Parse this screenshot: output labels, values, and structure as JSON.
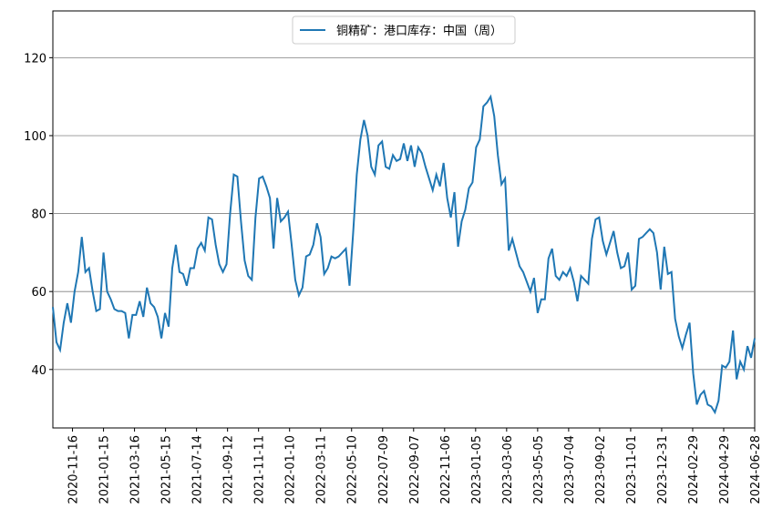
{
  "chart_data": {
    "type": "line",
    "x": [
      "2020-10-09",
      "2020-10-16",
      "2020-10-23",
      "2020-10-30",
      "2020-11-06",
      "2020-11-13",
      "2020-11-20",
      "2020-11-27",
      "2020-12-04",
      "2020-12-11",
      "2020-12-18",
      "2020-12-25",
      "2021-01-01",
      "2021-01-08",
      "2021-01-15",
      "2021-01-22",
      "2021-01-29",
      "2021-02-05",
      "2021-02-12",
      "2021-02-19",
      "2021-02-26",
      "2021-03-05",
      "2021-03-12",
      "2021-03-19",
      "2021-03-26",
      "2021-04-02",
      "2021-04-09",
      "2021-04-16",
      "2021-04-23",
      "2021-04-30",
      "2021-05-07",
      "2021-05-14",
      "2021-05-21",
      "2021-05-28",
      "2021-06-04",
      "2021-06-11",
      "2021-06-18",
      "2021-06-25",
      "2021-07-02",
      "2021-07-09",
      "2021-07-16",
      "2021-07-23",
      "2021-07-30",
      "2021-08-06",
      "2021-08-13",
      "2021-08-20",
      "2021-08-27",
      "2021-09-03",
      "2021-09-10",
      "2021-09-17",
      "2021-09-24",
      "2021-10-01",
      "2021-10-08",
      "2021-10-15",
      "2021-10-22",
      "2021-10-29",
      "2021-11-05",
      "2021-11-12",
      "2021-11-19",
      "2021-11-26",
      "2021-12-03",
      "2021-12-10",
      "2021-12-17",
      "2021-12-24",
      "2021-12-31",
      "2022-01-07",
      "2022-01-14",
      "2022-01-21",
      "2022-01-28",
      "2022-02-04",
      "2022-02-11",
      "2022-02-18",
      "2022-02-25",
      "2022-03-04",
      "2022-03-11",
      "2022-03-18",
      "2022-03-25",
      "2022-04-01",
      "2022-04-08",
      "2022-04-15",
      "2022-04-22",
      "2022-04-29",
      "2022-05-06",
      "2022-05-13",
      "2022-05-20",
      "2022-05-27",
      "2022-06-03",
      "2022-06-10",
      "2022-06-17",
      "2022-06-24",
      "2022-07-01",
      "2022-07-08",
      "2022-07-15",
      "2022-07-22",
      "2022-07-29",
      "2022-08-05",
      "2022-08-12",
      "2022-08-19",
      "2022-08-26",
      "2022-09-02",
      "2022-09-09",
      "2022-09-16",
      "2022-09-23",
      "2022-09-30",
      "2022-10-07",
      "2022-10-14",
      "2022-10-21",
      "2022-10-28",
      "2022-11-04",
      "2022-11-11",
      "2022-11-18",
      "2022-11-25",
      "2022-12-02",
      "2022-12-09",
      "2022-12-16",
      "2022-12-23",
      "2022-12-30",
      "2023-01-06",
      "2023-01-13",
      "2023-01-20",
      "2023-01-27",
      "2023-02-03",
      "2023-02-10",
      "2023-02-17",
      "2023-02-24",
      "2023-03-03",
      "2023-03-10",
      "2023-03-17",
      "2023-03-24",
      "2023-03-31",
      "2023-04-07",
      "2023-04-14",
      "2023-04-21",
      "2023-04-28",
      "2023-05-05",
      "2023-05-12",
      "2023-05-19",
      "2023-05-26",
      "2023-06-02",
      "2023-06-09",
      "2023-06-16",
      "2023-06-23",
      "2023-06-30",
      "2023-07-07",
      "2023-07-14",
      "2023-07-21",
      "2023-07-28",
      "2023-08-04",
      "2023-08-11",
      "2023-08-18",
      "2023-08-25",
      "2023-09-01",
      "2023-09-08",
      "2023-09-15",
      "2023-09-22",
      "2023-09-29",
      "2023-10-06",
      "2023-10-13",
      "2023-10-20",
      "2023-10-27",
      "2023-11-03",
      "2023-11-10",
      "2023-11-17",
      "2023-11-24",
      "2023-12-01",
      "2023-12-08",
      "2023-12-15",
      "2023-12-22",
      "2023-12-29",
      "2024-01-05",
      "2024-01-12",
      "2024-01-19",
      "2024-01-26",
      "2024-02-02",
      "2024-02-09",
      "2024-02-16",
      "2024-02-23",
      "2024-03-01",
      "2024-03-08",
      "2024-03-15",
      "2024-03-22",
      "2024-03-29",
      "2024-04-05",
      "2024-04-12",
      "2024-04-19",
      "2024-04-26",
      "2024-05-03",
      "2024-05-10",
      "2024-05-17",
      "2024-05-24",
      "2024-05-31",
      "2024-06-07",
      "2024-06-14",
      "2024-06-21",
      "2024-06-28"
    ],
    "series": [
      {
        "name": "铜精矿：港口库存：中国（周）",
        "color": "#1f77b4",
        "values": [
          56,
          47,
          45,
          52,
          57,
          52,
          60,
          65,
          74,
          65,
          66,
          60,
          55,
          55.5,
          70,
          60,
          58,
          55.5,
          55,
          55,
          54.5,
          48,
          54,
          54,
          57.5,
          53.5,
          61,
          57,
          56,
          53.5,
          48,
          54.5,
          51,
          66,
          72,
          65,
          64.5,
          61.5,
          66,
          66,
          71,
          72.5,
          70.5,
          79,
          78.5,
          72,
          67,
          65,
          67,
          80,
          90,
          89.5,
          78,
          68,
          64,
          63,
          79,
          89,
          89.5,
          87,
          84,
          71,
          84,
          78,
          79,
          80.5,
          72,
          63,
          59,
          61,
          69,
          69.5,
          72,
          77.5,
          74,
          64.5,
          66,
          69,
          68.5,
          69,
          70,
          71,
          61.5,
          75,
          90,
          99,
          104,
          100,
          92,
          90,
          97.5,
          98.5,
          92,
          91.5,
          95,
          93.5,
          94,
          98,
          93.5,
          97.5,
          92,
          97,
          95.5,
          92,
          89,
          86,
          90,
          87,
          93,
          84,
          79,
          85.5,
          71.5,
          78,
          81,
          86.5,
          88,
          97,
          99,
          107.5,
          108.5,
          110,
          105,
          95,
          87.5,
          89,
          70.5,
          73.5,
          70,
          66.5,
          65,
          62.5,
          60,
          63.5,
          54.5,
          58,
          58,
          68.5,
          71,
          64,
          63,
          65,
          64,
          66,
          62.5,
          57.5,
          64,
          63,
          62,
          73.5,
          78.5,
          79,
          73,
          69.5,
          72.5,
          75.5,
          70,
          66,
          66.5,
          70,
          60.5,
          61.5,
          73.5,
          74,
          75,
          76,
          75,
          70,
          60.5,
          71.5,
          64.5,
          65,
          53,
          48.5,
          45.5,
          49,
          52,
          39,
          31,
          33.5,
          34.5,
          31,
          30.5,
          29,
          32,
          41,
          40.5,
          42,
          50,
          37.5,
          42,
          40,
          46,
          43,
          48
        ]
      }
    ],
    "xlim": [
      "2020-10-09",
      "2024-06-28"
    ],
    "xticks": [
      "2020-11-16",
      "2021-01-15",
      "2021-03-16",
      "2021-05-15",
      "2021-07-14",
      "2021-09-12",
      "2021-11-11",
      "2022-01-10",
      "2022-03-11",
      "2022-05-10",
      "2022-07-09",
      "2022-09-07",
      "2022-11-06",
      "2023-01-05",
      "2023-03-06",
      "2023-05-05",
      "2023-07-04",
      "2023-09-02",
      "2023-11-01",
      "2023-12-31",
      "2024-02-29",
      "2024-04-29",
      "2024-06-28"
    ],
    "ylim": [
      25,
      132
    ],
    "yticks": [
      40,
      60,
      80,
      100,
      120
    ],
    "grid": true,
    "legend": "upper center"
  }
}
